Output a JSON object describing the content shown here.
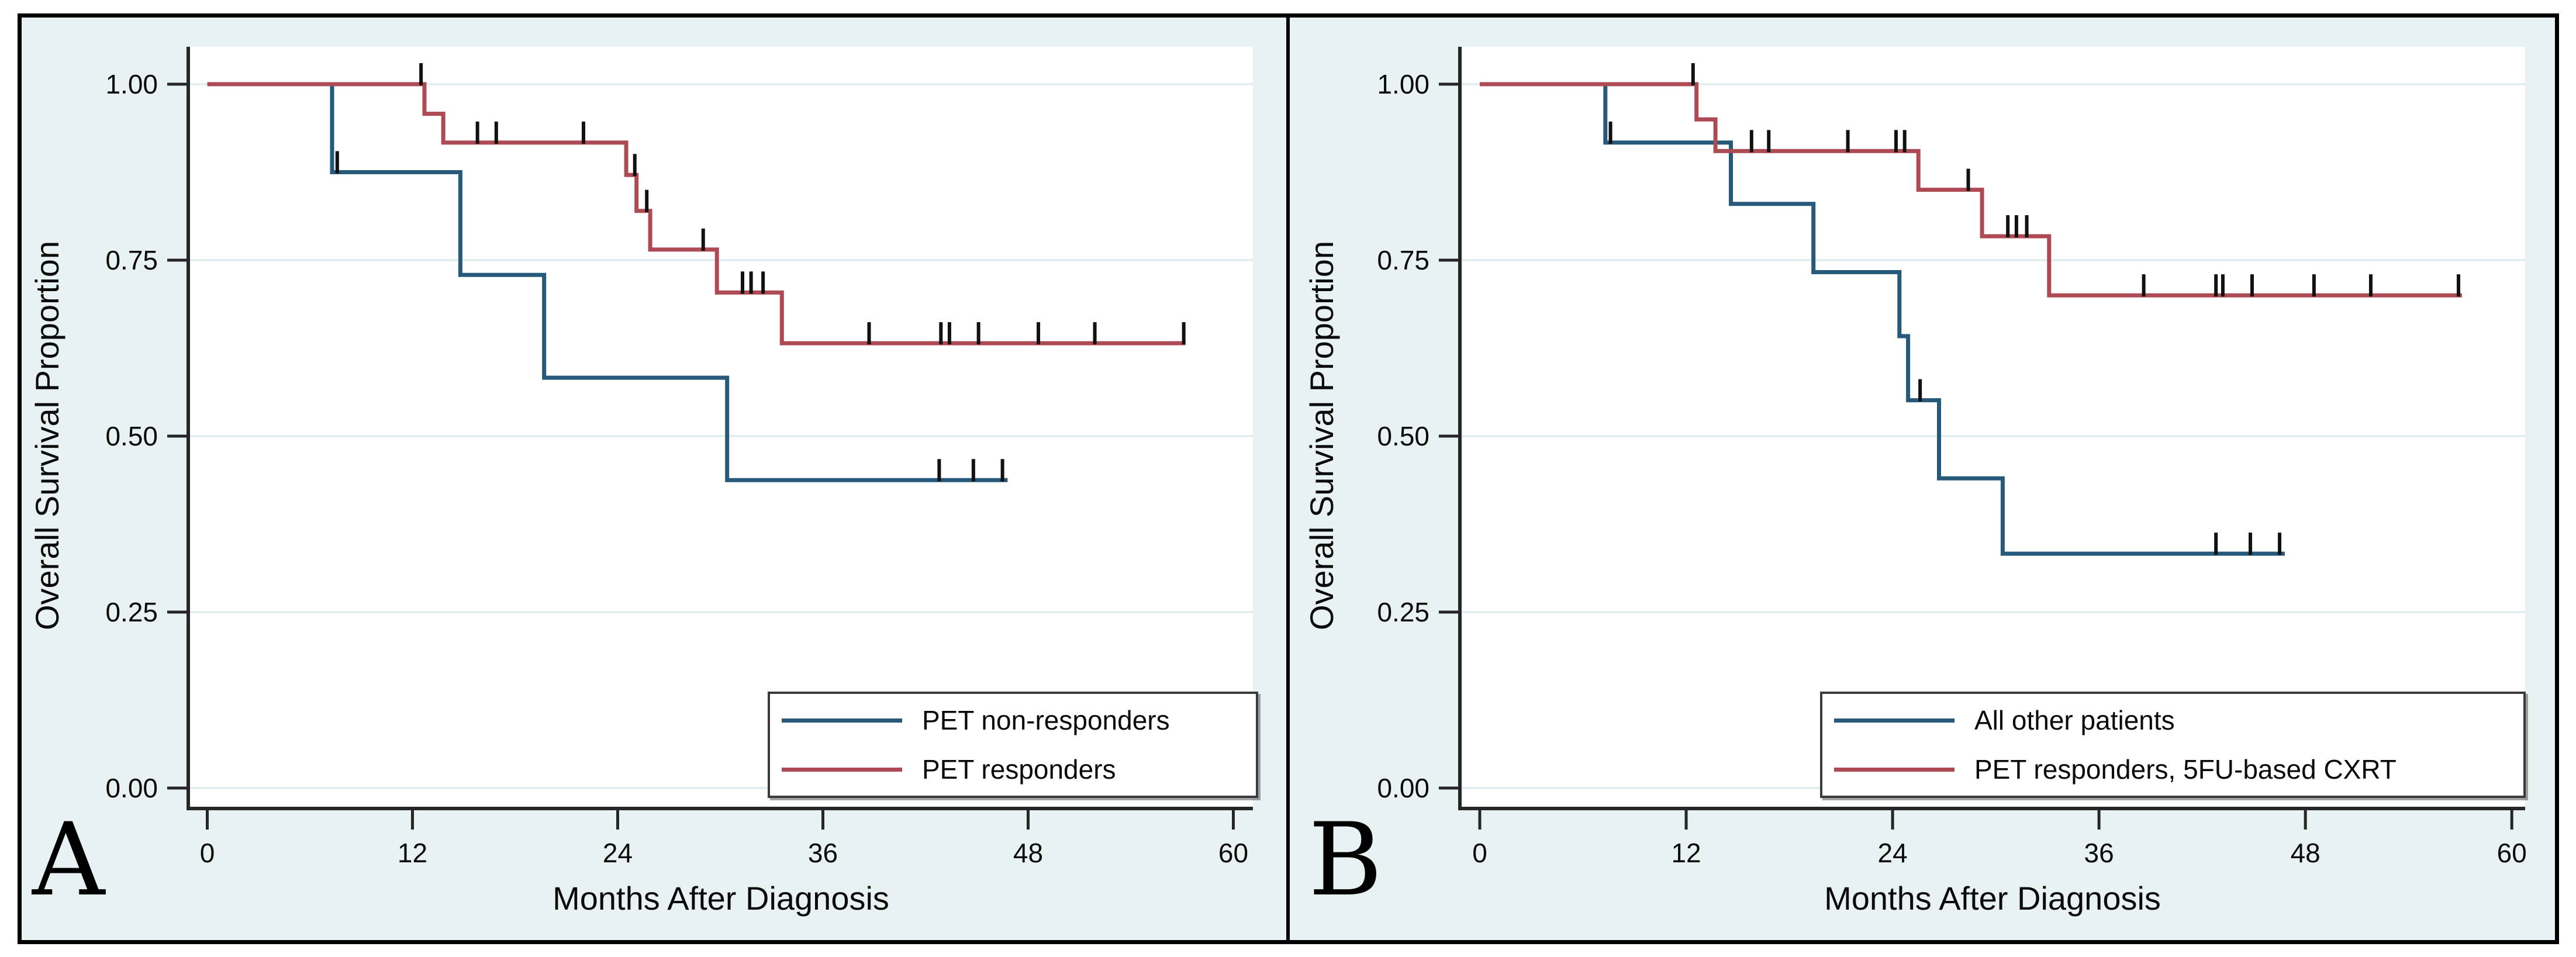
{
  "figure": {
    "outer_background": "#e9f2f2",
    "plot_background": "#ffffff",
    "border_color": "#000000",
    "grid_color": "#dceaec",
    "axis_color": "#262626",
    "tick_text_color": "#0a0a0a",
    "censor_tick_color": "#111111",
    "legend_border_color": "#3b3b3b"
  },
  "chart_data": [
    {
      "type": "line",
      "subtype": "kaplan-meier-step",
      "panel_letter": "A",
      "xlabel": "Months After Diagnosis",
      "ylabel": "Overall Survival Proportion",
      "xlim": [
        0,
        62
      ],
      "ylim": [
        0,
        1.05
      ],
      "xtick_values": [
        0,
        12,
        24,
        36,
        48,
        60
      ],
      "xtick_labels": [
        "0",
        "12",
        "24",
        "36",
        "48",
        "60"
      ],
      "ytick_values": [
        1.0,
        0.75,
        0.5,
        0.25,
        0.0
      ],
      "ytick_labels": [
        "1.00",
        "0.75",
        "0.50",
        "0.25",
        "0.00"
      ],
      "grid": "horizontal",
      "legend_position": "bottom-right",
      "series": [
        {
          "name": "PET non-responders",
          "color": "#27597b",
          "steps": [
            [
              0,
              1.0
            ],
            [
              7.3,
              1.0
            ],
            [
              7.3,
              0.875
            ],
            [
              14.8,
              0.875
            ],
            [
              14.8,
              0.729
            ],
            [
              19.7,
              0.729
            ],
            [
              19.7,
              0.583
            ],
            [
              30.4,
              0.583
            ],
            [
              30.4,
              0.4375
            ],
            [
              46.8,
              0.4375
            ]
          ],
          "censors": [
            [
              7.6,
              0.875
            ],
            [
              42.8,
              0.4375
            ],
            [
              44.8,
              0.4375
            ],
            [
              46.5,
              0.4375
            ]
          ]
        },
        {
          "name": "PET responders",
          "color": "#ae4a54",
          "steps": [
            [
              0,
              1.0
            ],
            [
              12.7,
              1.0
            ],
            [
              12.7,
              0.958
            ],
            [
              13.8,
              0.958
            ],
            [
              13.8,
              0.917
            ],
            [
              24.5,
              0.917
            ],
            [
              24.5,
              0.871
            ],
            [
              25.1,
              0.871
            ],
            [
              25.1,
              0.82
            ],
            [
              25.9,
              0.82
            ],
            [
              25.9,
              0.765
            ],
            [
              29.8,
              0.765
            ],
            [
              29.8,
              0.704
            ],
            [
              33.6,
              0.704
            ],
            [
              33.6,
              0.632
            ],
            [
              57.2,
              0.632
            ]
          ],
          "censors": [
            [
              12.5,
              1.0
            ],
            [
              15.8,
              0.917
            ],
            [
              16.9,
              0.917
            ],
            [
              22.0,
              0.917
            ],
            [
              25.0,
              0.871
            ],
            [
              25.7,
              0.82
            ],
            [
              29.0,
              0.765
            ],
            [
              31.3,
              0.704
            ],
            [
              31.8,
              0.704
            ],
            [
              32.5,
              0.704
            ],
            [
              38.7,
              0.632
            ],
            [
              42.9,
              0.632
            ],
            [
              43.4,
              0.632
            ],
            [
              45.1,
              0.632
            ],
            [
              48.6,
              0.632
            ],
            [
              51.9,
              0.632
            ],
            [
              57.1,
              0.632
            ]
          ]
        }
      ]
    },
    {
      "type": "line",
      "subtype": "kaplan-meier-step",
      "panel_letter": "B",
      "xlabel": "Months After Diagnosis",
      "ylabel": "Overall Survival Proportion",
      "xlim": [
        0,
        62
      ],
      "ylim": [
        0,
        1.05
      ],
      "xtick_values": [
        0,
        12,
        24,
        36,
        48,
        60
      ],
      "xtick_labels": [
        "0",
        "12",
        "24",
        "36",
        "48",
        "60"
      ],
      "ytick_values": [
        1.0,
        0.75,
        0.5,
        0.25,
        0.0
      ],
      "ytick_labels": [
        "1.00",
        "0.75",
        "0.50",
        "0.25",
        "0.00"
      ],
      "grid": "horizontal",
      "legend_position": "bottom-right",
      "series": [
        {
          "name": "All other patients",
          "color": "#27597b",
          "steps": [
            [
              0,
              1.0
            ],
            [
              7.3,
              1.0
            ],
            [
              7.3,
              0.917
            ],
            [
              14.6,
              0.917
            ],
            [
              14.6,
              0.83
            ],
            [
              19.4,
              0.83
            ],
            [
              19.4,
              0.733
            ],
            [
              24.4,
              0.733
            ],
            [
              24.4,
              0.642
            ],
            [
              24.9,
              0.642
            ],
            [
              24.9,
              0.551
            ],
            [
              26.7,
              0.551
            ],
            [
              26.7,
              0.44
            ],
            [
              30.4,
              0.44
            ],
            [
              30.4,
              0.333
            ],
            [
              46.8,
              0.333
            ]
          ],
          "censors": [
            [
              7.6,
              0.917
            ],
            [
              25.6,
              0.551
            ],
            [
              42.8,
              0.333
            ],
            [
              44.8,
              0.333
            ],
            [
              46.5,
              0.333
            ]
          ]
        },
        {
          "name": "PET responders, 5FU-based CXRT",
          "color": "#ae4a54",
          "steps": [
            [
              0,
              1.0
            ],
            [
              12.6,
              1.0
            ],
            [
              12.6,
              0.95
            ],
            [
              13.7,
              0.95
            ],
            [
              13.7,
              0.905
            ],
            [
              25.5,
              0.905
            ],
            [
              25.5,
              0.85
            ],
            [
              29.2,
              0.85
            ],
            [
              29.2,
              0.784
            ],
            [
              33.1,
              0.784
            ],
            [
              33.1,
              0.7
            ],
            [
              57.1,
              0.7
            ]
          ],
          "censors": [
            [
              12.4,
              1.0
            ],
            [
              15.8,
              0.905
            ],
            [
              16.8,
              0.905
            ],
            [
              21.4,
              0.905
            ],
            [
              24.2,
              0.905
            ],
            [
              24.7,
              0.905
            ],
            [
              28.4,
              0.85
            ],
            [
              30.7,
              0.784
            ],
            [
              31.2,
              0.784
            ],
            [
              31.8,
              0.784
            ],
            [
              38.6,
              0.7
            ],
            [
              42.8,
              0.7
            ],
            [
              43.2,
              0.7
            ],
            [
              44.9,
              0.7
            ],
            [
              48.5,
              0.7
            ],
            [
              51.8,
              0.7
            ],
            [
              56.9,
              0.7
            ]
          ]
        }
      ]
    }
  ]
}
